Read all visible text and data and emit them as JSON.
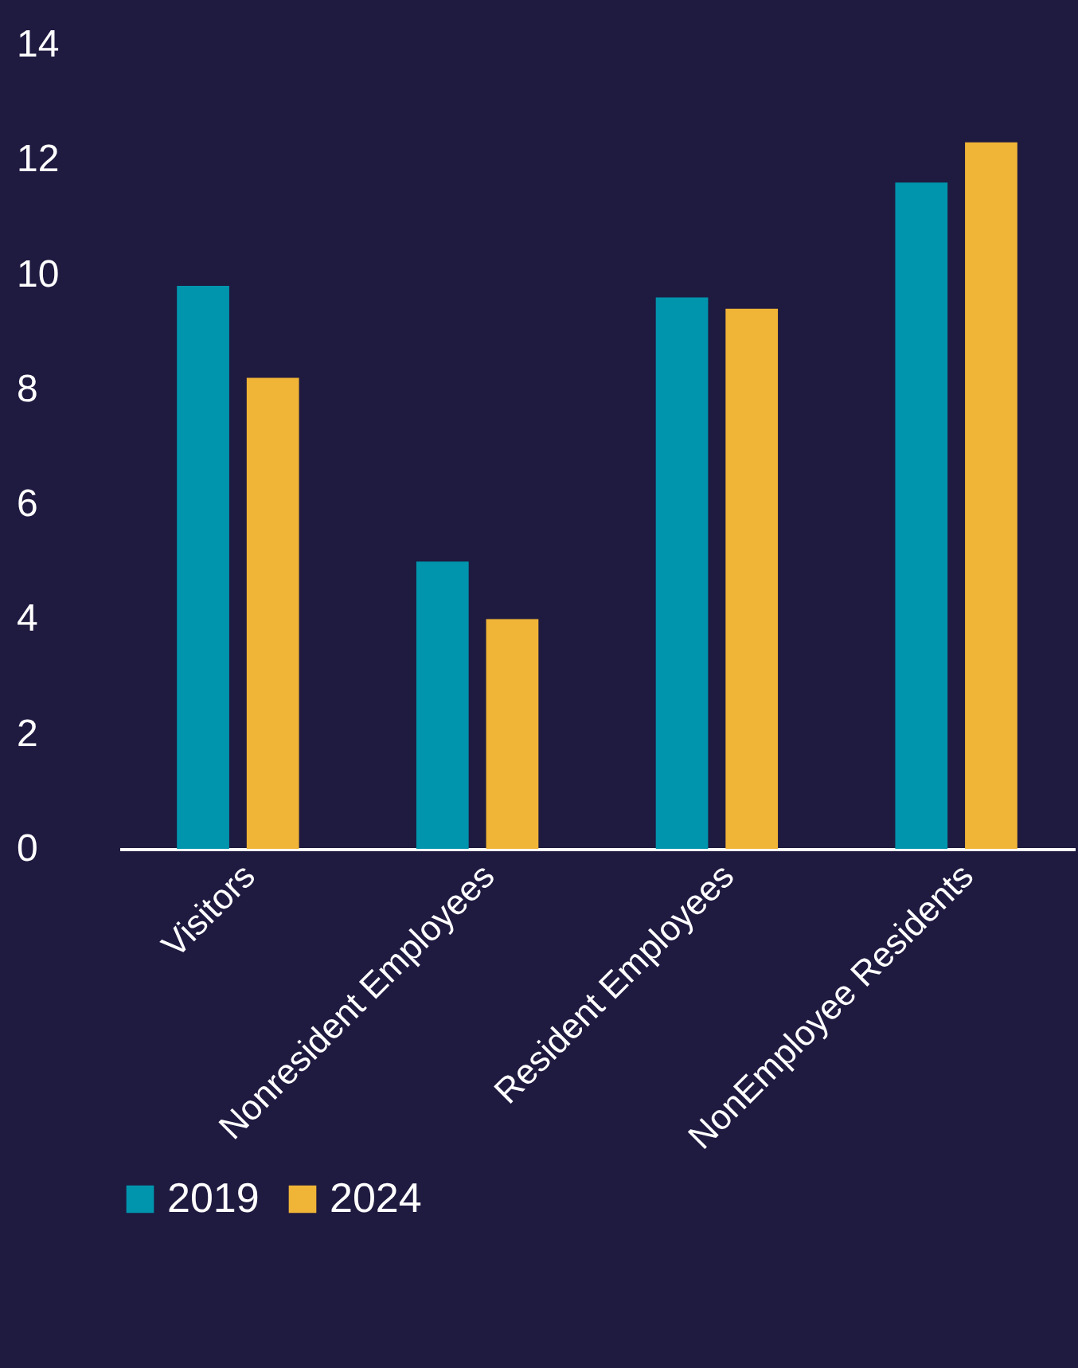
{
  "chart_data": {
    "type": "bar",
    "categories": [
      "Visitors",
      "Nonresident Employees",
      "Resident Employees",
      "NonEmployee Residents"
    ],
    "series": [
      {
        "name": "2019",
        "color": "#0095ad",
        "values": [
          9.8,
          5.0,
          9.6,
          11.6
        ]
      },
      {
        "name": "2024",
        "color": "#f0b537",
        "values": [
          8.2,
          4.0,
          9.4,
          12.3
        ]
      }
    ],
    "ylim": [
      0,
      14
    ],
    "yticks": [
      0,
      2,
      4,
      6,
      8,
      10,
      12,
      14
    ],
    "grid": false,
    "legend": "bottom"
  }
}
